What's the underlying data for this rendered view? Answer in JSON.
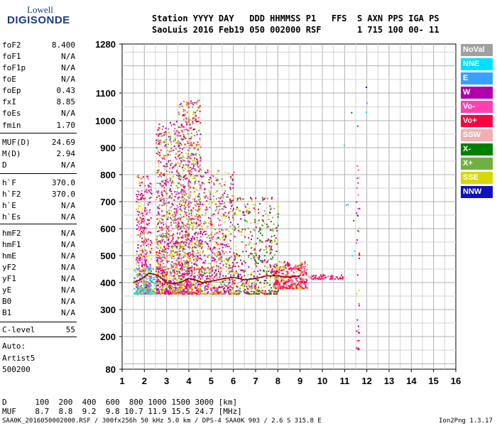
{
  "logo": {
    "line1": "Lowell",
    "line2": "DIGISONDE"
  },
  "header": {
    "line1": "Station YYYY DAY   DDD HHMMSS P1   FFS  S AXN PPS IGA PS",
    "line2": "SaoLuis 2016 Feb19 050 002000 RSF       1 715 100 00- 11"
  },
  "params": [
    {
      "key": "foF2",
      "value": "8.400"
    },
    {
      "key": "foF1",
      "value": "N/A"
    },
    {
      "key": "foF1p",
      "value": "N/A"
    },
    {
      "key": "foE",
      "value": "N/A"
    },
    {
      "key": "foEp",
      "value": "0.43"
    },
    {
      "key": "fxI",
      "value": "8.85"
    },
    {
      "key": "foEs",
      "value": "N/A"
    },
    {
      "key": "fmin",
      "value": "1.70"
    },
    {
      "key": "MUF(D)",
      "value": "24.69"
    },
    {
      "key": "M(D)",
      "value": "2.94"
    },
    {
      "key": "D",
      "value": "N/A"
    },
    {
      "key": "h`F",
      "value": "370.0"
    },
    {
      "key": "h`F2",
      "value": "370.0"
    },
    {
      "key": "h`E",
      "value": "N/A"
    },
    {
      "key": "h`Es",
      "value": "N/A"
    },
    {
      "key": "hmF2",
      "value": "N/A"
    },
    {
      "key": "hmF1",
      "value": "N/A"
    },
    {
      "key": "hmE",
      "value": "N/A"
    },
    {
      "key": "yF2",
      "value": "N/A"
    },
    {
      "key": "yF1",
      "value": "N/A"
    },
    {
      "key": "yE",
      "value": "N/A"
    },
    {
      "key": "B0",
      "value": "N/A"
    },
    {
      "key": "B1",
      "value": "N/A"
    },
    {
      "key": "C-level",
      "value": "55"
    }
  ],
  "autoscaling": {
    "line1": "Auto:",
    "line2": "Artist5",
    "line3": "500200"
  },
  "muf_table": {
    "d_line": "D      100  200  400  600  800 1000 1500 3000 [km]",
    "muf_line": "MUF    8.7  8.8  9.2  9.8 10.7 11.9 15.5 24.7 [MHz]"
  },
  "footer": {
    "left": "SAA0K_2016050002000.RSF / 300fx256h 50 kHz 5.0 km / DPS-4 SAA0K 903 / 2.6 S 315.8 E",
    "right": "Ion2Png 1.3.17"
  },
  "legend": [
    {
      "label": "NoVal",
      "color": "#a0a0a0"
    },
    {
      "label": "NNE",
      "color": "#00e0ff"
    },
    {
      "label": "E",
      "color": "#3aa0ff"
    },
    {
      "label": "W",
      "color": "#b000b0"
    },
    {
      "label": "Vo-",
      "color": "#ff40b0"
    },
    {
      "label": "Vo+",
      "color": "#ff0040"
    },
    {
      "label": "SSW",
      "color": "#f0b0b0"
    },
    {
      "label": "X-",
      "color": "#008000"
    },
    {
      "label": "X+",
      "color": "#70b040"
    },
    {
      "label": "SSE",
      "color": "#d8d800"
    },
    {
      "label": "NNW",
      "color": "#1010c0"
    }
  ],
  "chart_data": {
    "type": "scatter",
    "title": "",
    "xlabel": "",
    "ylabel": "",
    "xlim": [
      1,
      16
    ],
    "ylim": [
      80,
      1280
    ],
    "x_ticks": [
      1,
      2,
      3,
      4,
      5,
      6,
      7,
      8,
      9,
      10,
      11,
      12,
      13,
      14,
      15,
      16
    ],
    "y_ticks": [
      80,
      200,
      300,
      400,
      500,
      600,
      700,
      800,
      900,
      1000,
      1100,
      1280
    ],
    "grid": true,
    "trace": {
      "name": "",
      "color": "#8b0000",
      "x": [
        1.5,
        1.8,
        2.0,
        2.2,
        2.5,
        2.8,
        3.0,
        3.3,
        3.6,
        4.0,
        4.3,
        4.6,
        5.0,
        5.3,
        5.6,
        6.0,
        6.5,
        7.0,
        7.5,
        8.0,
        8.5,
        9.0
      ],
      "y": [
        400,
        410,
        420,
        435,
        430,
        415,
        400,
        395,
        400,
        415,
        410,
        400,
        405,
        410,
        415,
        420,
        410,
        415,
        425,
        425,
        420,
        425
      ]
    },
    "clusters": [
      {
        "x": [
          1.6,
          2.3
        ],
        "y": [
          360,
          800
        ],
        "weight": 420,
        "mix": [
          3,
          5,
          9,
          4
        ]
      },
      {
        "x": [
          2.5,
          3.5
        ],
        "y": [
          360,
          1000
        ],
        "weight": 900,
        "mix": [
          3,
          9,
          5,
          4,
          8
        ]
      },
      {
        "x": [
          3.5,
          4.5
        ],
        "y": [
          360,
          1080
        ],
        "weight": 1100,
        "mix": [
          3,
          9,
          5,
          8,
          4
        ]
      },
      {
        "x": [
          4.5,
          6.0
        ],
        "y": [
          360,
          820
        ],
        "weight": 650,
        "mix": [
          9,
          3,
          5,
          8,
          4
        ]
      },
      {
        "x": [
          6.0,
          8.0
        ],
        "y": [
          360,
          720
        ],
        "weight": 520,
        "mix": [
          9,
          5,
          3,
          8,
          7
        ]
      },
      {
        "x": [
          7.8,
          9.3
        ],
        "y": [
          380,
          480
        ],
        "weight": 360,
        "mix": [
          5,
          5,
          4,
          9
        ]
      },
      {
        "x": [
          9.3,
          10.9
        ],
        "y": [
          415,
          432
        ],
        "weight": 60,
        "mix": [
          5,
          4
        ]
      },
      {
        "x": [
          11.5,
          11.65
        ],
        "y": [
          155,
          1150
        ],
        "weight": 40,
        "mix": [
          5,
          4,
          9,
          3
        ]
      },
      {
        "x": [
          10.8,
          12.0
        ],
        "y": [
          500,
          1130
        ],
        "weight": 12,
        "mix": [
          1,
          2,
          7,
          10
        ]
      },
      {
        "x": [
          1.5,
          2.5
        ],
        "y": [
          360,
          460
        ],
        "weight": 180,
        "mix": [
          1,
          2,
          9
        ]
      }
    ]
  }
}
